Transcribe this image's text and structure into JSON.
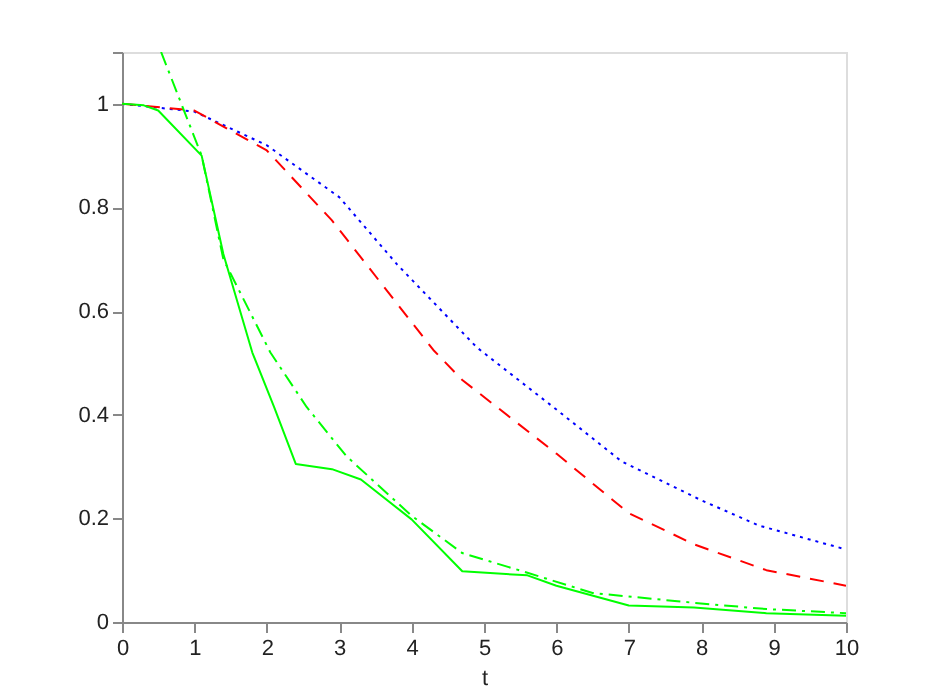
{
  "chart_data": {
    "type": "line",
    "xlabel": "t",
    "xlim": [
      0,
      10
    ],
    "ylim": [
      0,
      1.1
    ],
    "xticks": [
      0,
      1,
      2,
      3,
      4,
      5,
      6,
      7,
      8,
      9,
      10
    ],
    "yticks": [
      0,
      0.2,
      0.4,
      0.6,
      0.8,
      1,
      {
        "value": 1.1,
        "label": null
      }
    ],
    "grid": false,
    "marker": "none",
    "series": [
      {
        "color": "#0000ff",
        "line_style": "dotted",
        "x": [
          0,
          1,
          2,
          3,
          3.8,
          4.9,
          6,
          6.9,
          8,
          8.8,
          10
        ],
        "values": [
          1,
          0.985,
          0.92,
          0.82,
          0.69,
          0.53,
          0.41,
          0.31,
          0.235,
          0.186,
          0.14
        ]
      },
      {
        "color": "#ff0000",
        "line_style": "dashed",
        "x": [
          0,
          1,
          2,
          2.9,
          4.3,
          4.7,
          6,
          7,
          7.9,
          8.9,
          10
        ],
        "values": [
          1,
          0.987,
          0.91,
          0.775,
          0.525,
          0.467,
          0.325,
          0.21,
          0.15,
          0.1,
          0.07
        ]
      },
      {
        "color": "#00ff00",
        "line_style": "solid",
        "x": [
          0,
          0.3,
          0.5,
          1.1,
          1.4,
          1.8,
          2.1,
          2.4,
          2.9,
          3.3,
          4,
          4.7,
          5.6,
          6,
          7,
          7.9,
          8.9,
          10
        ],
        "values": [
          1,
          0.997,
          0.987,
          0.9,
          0.71,
          0.52,
          0.415,
          0.305,
          0.295,
          0.275,
          0.198,
          0.098,
          0.09,
          0.07,
          0.032,
          0.028,
          0.017,
          0.012
        ]
      },
      {
        "color": "#00ff00",
        "line_style": "dashdot",
        "x": [
          0.54,
          1.1,
          1.4,
          2.05,
          2.55,
          3.1,
          4,
          4.7,
          5.6,
          6.5,
          7.9,
          8.9,
          10
        ],
        "values": [
          1.1,
          0.9,
          0.7,
          0.52,
          0.415,
          0.32,
          0.205,
          0.133,
          0.095,
          0.056,
          0.037,
          0.025,
          0.017
        ]
      }
    ]
  }
}
